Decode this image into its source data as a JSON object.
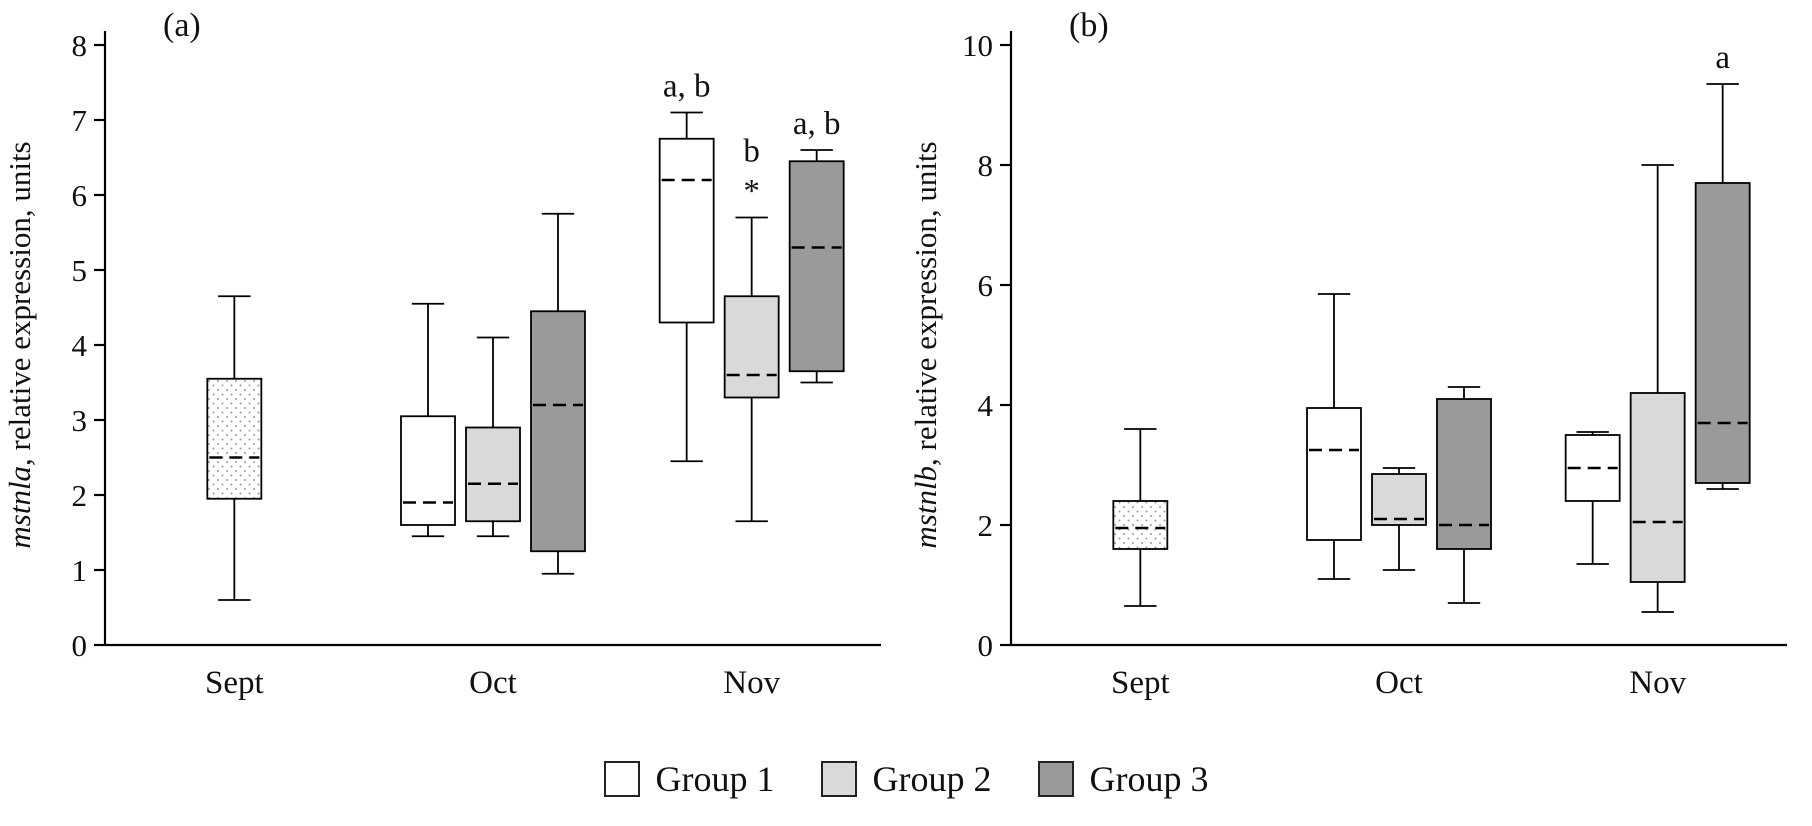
{
  "legend": {
    "items": [
      {
        "label": "Group 1",
        "color": "#ffffff"
      },
      {
        "label": "Group 2",
        "color": "#d9d9d9"
      },
      {
        "label": "Group 3",
        "color": "#9a9a9a"
      }
    ]
  },
  "chart_data": [
    {
      "type": "box",
      "panel_label": "(a)",
      "ylabel_gene": "mstnla",
      "ylabel_rest": ", relative expression, units",
      "ylim": [
        0,
        8
      ],
      "ytick_step": 1,
      "categories": [
        "Sept",
        "Oct",
        "Nov"
      ],
      "boxes": [
        {
          "category": "Sept",
          "group": "pooled",
          "fill": "pattern",
          "whisker_low": 0.6,
          "q1": 1.95,
          "median": 2.5,
          "q3": 3.55,
          "whisker_high": 4.65,
          "annotations": []
        },
        {
          "category": "Oct",
          "group": "Group 1",
          "fill": "#ffffff",
          "whisker_low": 1.45,
          "q1": 1.6,
          "median": 1.9,
          "q3": 3.05,
          "whisker_high": 4.55,
          "annotations": []
        },
        {
          "category": "Oct",
          "group": "Group 2",
          "fill": "#d9d9d9",
          "whisker_low": 1.45,
          "q1": 1.65,
          "median": 2.15,
          "q3": 2.9,
          "whisker_high": 4.1,
          "annotations": []
        },
        {
          "category": "Oct",
          "group": "Group 3",
          "fill": "#9a9a9a",
          "whisker_low": 0.95,
          "q1": 1.25,
          "median": 3.2,
          "q3": 4.45,
          "whisker_high": 5.75,
          "annotations": []
        },
        {
          "category": "Nov",
          "group": "Group 1",
          "fill": "#ffffff",
          "whisker_low": 2.45,
          "q1": 4.3,
          "median": 6.2,
          "q3": 6.75,
          "whisker_high": 7.1,
          "annotations": [
            "a, b"
          ]
        },
        {
          "category": "Nov",
          "group": "Group 2",
          "fill": "#d9d9d9",
          "whisker_low": 1.65,
          "q1": 3.3,
          "median": 3.6,
          "q3": 4.65,
          "whisker_high": 5.7,
          "annotations": [
            "b",
            "*"
          ]
        },
        {
          "category": "Nov",
          "group": "Group 3",
          "fill": "#9a9a9a",
          "whisker_low": 3.5,
          "q1": 3.65,
          "median": 5.3,
          "q3": 6.45,
          "whisker_high": 6.6,
          "annotations": [
            "a, b"
          ]
        }
      ]
    },
    {
      "type": "box",
      "panel_label": "(b)",
      "ylabel_gene": "mstnlb",
      "ylabel_rest": ", relative expression, units",
      "ylim": [
        0,
        10
      ],
      "ytick_step": 2,
      "categories": [
        "Sept",
        "Oct",
        "Nov"
      ],
      "boxes": [
        {
          "category": "Sept",
          "group": "pooled",
          "fill": "pattern",
          "whisker_low": 0.65,
          "q1": 1.6,
          "median": 1.95,
          "q3": 2.4,
          "whisker_high": 3.6,
          "annotations": []
        },
        {
          "category": "Oct",
          "group": "Group 1",
          "fill": "#ffffff",
          "whisker_low": 1.1,
          "q1": 1.75,
          "median": 3.25,
          "q3": 3.95,
          "whisker_high": 5.85,
          "annotations": []
        },
        {
          "category": "Oct",
          "group": "Group 2",
          "fill": "#d9d9d9",
          "whisker_low": 1.25,
          "q1": 2.0,
          "median": 2.1,
          "q3": 2.85,
          "whisker_high": 2.95,
          "annotations": []
        },
        {
          "category": "Oct",
          "group": "Group 3",
          "fill": "#9a9a9a",
          "whisker_low": 0.7,
          "q1": 1.6,
          "median": 2.0,
          "q3": 4.1,
          "whisker_high": 4.3,
          "annotations": []
        },
        {
          "category": "Nov",
          "group": "Group 1",
          "fill": "#ffffff",
          "whisker_low": 1.35,
          "q1": 2.4,
          "median": 2.95,
          "q3": 3.5,
          "whisker_high": 3.55,
          "annotations": []
        },
        {
          "category": "Nov",
          "group": "Group 2",
          "fill": "#d9d9d9",
          "whisker_low": 0.55,
          "q1": 1.05,
          "median": 2.05,
          "q3": 4.2,
          "whisker_high": 8.0,
          "annotations": []
        },
        {
          "category": "Nov",
          "group": "Group 3",
          "fill": "#9a9a9a",
          "whisker_low": 2.6,
          "q1": 2.7,
          "median": 3.7,
          "q3": 7.7,
          "whisker_high": 9.35,
          "annotations": [
            "a"
          ]
        }
      ]
    }
  ]
}
